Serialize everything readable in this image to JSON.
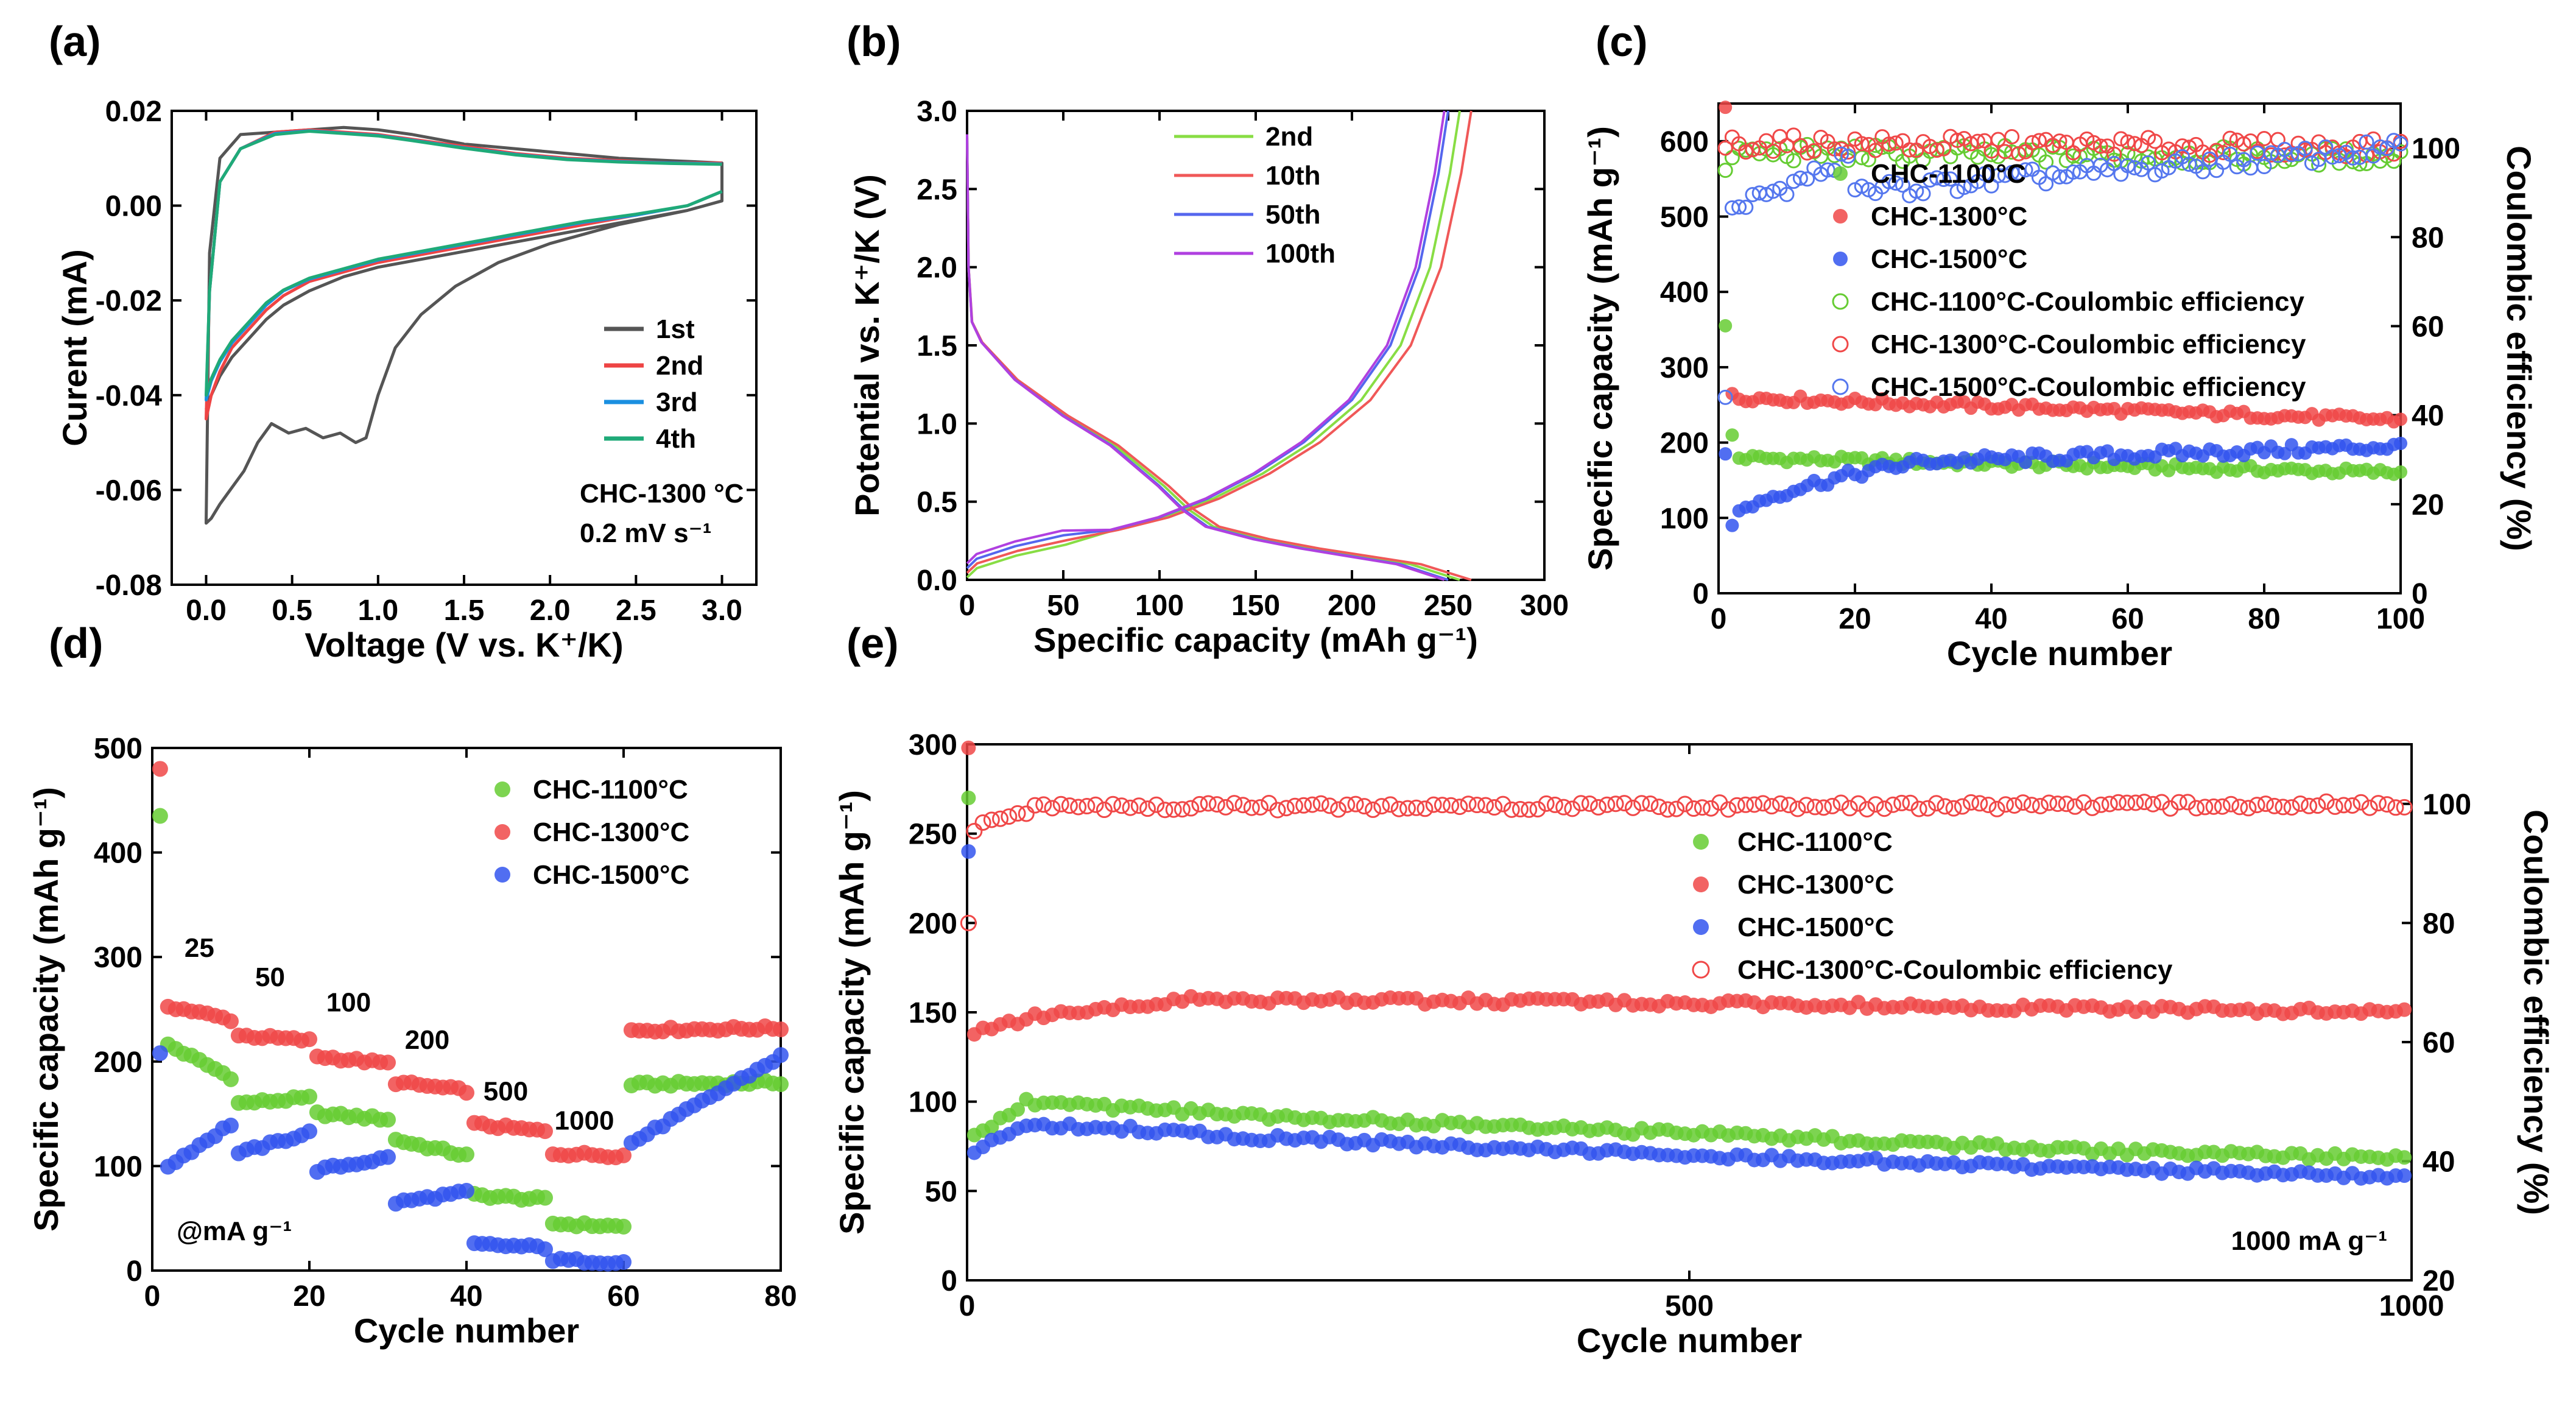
{
  "figure": {
    "panel_labels": [
      "(a)",
      "(b)",
      "(c)",
      "(d)",
      "(e)"
    ]
  },
  "chart_data": [
    {
      "id": "a",
      "type": "line",
      "title": "",
      "xlabel": "Voltage (V vs. K⁺/K)",
      "ylabel": "Curent (mA)",
      "xlim": [
        -0.2,
        3.2
      ],
      "ylim": [
        -0.08,
        0.02
      ],
      "xticks": [
        0.0,
        0.5,
        1.0,
        1.5,
        2.0,
        2.5,
        3.0
      ],
      "xtick_labels": [
        "0.0",
        "0.5",
        "1.0",
        "1.5",
        "2.0",
        "2.5",
        "3.0"
      ],
      "yticks": [
        -0.08,
        -0.06,
        -0.04,
        -0.02,
        0.0,
        0.02
      ],
      "ytick_labels": [
        "-0.08",
        "-0.06",
        "-0.04",
        "-0.02",
        "0.00",
        "0.02"
      ],
      "annotations": [
        "CHC-1300 °C",
        "0.2 mV s⁻¹"
      ],
      "legend_position": "bottom-right",
      "series": [
        {
          "name": "1st",
          "color": "#555555",
          "x": [
            2.8,
            2.4,
            2.0,
            1.7,
            1.45,
            1.25,
            1.1,
            1.0,
            0.93,
            0.87,
            0.78,
            0.68,
            0.58,
            0.48,
            0.38,
            0.3,
            0.22,
            0.14,
            0.08,
            0.03,
            0.0,
            0.02,
            0.08,
            0.2,
            0.4,
            0.6,
            0.8,
            1.0,
            1.2,
            1.5,
            1.8,
            2.1,
            2.4,
            2.7,
            3.0,
            3.0,
            2.8,
            2.5,
            2.2,
            1.9,
            1.6,
            1.3,
            1.0,
            0.8,
            0.6,
            0.45,
            0.35,
            0.25,
            0.15,
            0.08,
            0.03,
            0.0
          ],
          "y": [
            -0.001,
            -0.004,
            -0.008,
            -0.012,
            -0.017,
            -0.023,
            -0.03,
            -0.04,
            -0.049,
            -0.05,
            -0.048,
            -0.049,
            -0.047,
            -0.048,
            -0.046,
            -0.05,
            -0.056,
            -0.06,
            -0.063,
            -0.066,
            -0.067,
            -0.01,
            0.01,
            0.015,
            0.0155,
            0.016,
            0.0165,
            0.016,
            0.015,
            0.013,
            0.012,
            0.011,
            0.01,
            0.0095,
            0.009,
            0.001,
            -0.001,
            -0.003,
            -0.005,
            -0.007,
            -0.009,
            -0.011,
            -0.013,
            -0.015,
            -0.018,
            -0.021,
            -0.024,
            -0.028,
            -0.032,
            -0.036,
            -0.04,
            -0.043
          ]
        },
        {
          "name": "2nd",
          "color": "#ee4444",
          "x": [
            3.0,
            2.8,
            2.5,
            2.2,
            1.9,
            1.6,
            1.3,
            1.0,
            0.8,
            0.6,
            0.45,
            0.35,
            0.25,
            0.15,
            0.08,
            0.03,
            0.0,
            0.02,
            0.08,
            0.2,
            0.4,
            0.6,
            0.8,
            1.0,
            1.2,
            1.5,
            1.8,
            2.1,
            2.4,
            2.7,
            3.0
          ],
          "y": [
            0.003,
            0.0,
            -0.002,
            -0.004,
            -0.006,
            -0.008,
            -0.01,
            -0.012,
            -0.014,
            -0.016,
            -0.019,
            -0.022,
            -0.026,
            -0.03,
            -0.035,
            -0.04,
            -0.045,
            -0.018,
            0.005,
            0.012,
            0.0155,
            0.016,
            0.0155,
            0.015,
            0.014,
            0.0125,
            0.011,
            0.01,
            0.0095,
            0.009,
            0.009
          ]
        },
        {
          "name": "3rd",
          "color": "#1a8fe0",
          "x": [
            3.0,
            2.8,
            2.5,
            2.2,
            1.9,
            1.6,
            1.3,
            1.0,
            0.8,
            0.6,
            0.45,
            0.35,
            0.25,
            0.15,
            0.08,
            0.03,
            0.0,
            0.02,
            0.08,
            0.2,
            0.4,
            0.6,
            0.8,
            1.0,
            1.2,
            1.5,
            1.8,
            2.1,
            2.4,
            2.7,
            3.0
          ],
          "y": [
            0.003,
            0.0,
            -0.002,
            -0.0035,
            -0.0055,
            -0.0075,
            -0.0095,
            -0.0115,
            -0.0135,
            -0.0155,
            -0.018,
            -0.021,
            -0.025,
            -0.029,
            -0.033,
            -0.037,
            -0.041,
            -0.018,
            0.005,
            0.012,
            0.0152,
            0.0158,
            0.0153,
            0.0148,
            0.0138,
            0.0122,
            0.0108,
            0.0098,
            0.0093,
            0.009,
            0.0088
          ]
        },
        {
          "name": "4th",
          "color": "#1faa78",
          "x": [
            3.0,
            2.8,
            2.5,
            2.2,
            1.9,
            1.6,
            1.3,
            1.0,
            0.8,
            0.6,
            0.45,
            0.35,
            0.25,
            0.15,
            0.08,
            0.03,
            0.0,
            0.02,
            0.08,
            0.2,
            0.4,
            0.6,
            0.8,
            1.0,
            1.2,
            1.5,
            1.8,
            2.1,
            2.4,
            2.7,
            3.0
          ],
          "y": [
            0.003,
            0.0,
            -0.0018,
            -0.0033,
            -0.0053,
            -0.0073,
            -0.0093,
            -0.0113,
            -0.0133,
            -0.0153,
            -0.0178,
            -0.0205,
            -0.0245,
            -0.0285,
            -0.0325,
            -0.0365,
            -0.04,
            -0.018,
            0.005,
            0.012,
            0.015,
            0.0157,
            0.0152,
            0.0147,
            0.0137,
            0.0121,
            0.0107,
            0.0097,
            0.0092,
            0.0089,
            0.0087
          ]
        }
      ]
    },
    {
      "id": "b",
      "type": "line",
      "title": "",
      "xlabel": "Specific capacity (mAh g⁻¹)",
      "ylabel": "Potential vs. K⁺/K (V)",
      "xlim": [
        0,
        300
      ],
      "ylim": [
        0.0,
        3.0
      ],
      "xticks": [
        0,
        50,
        100,
        150,
        200,
        250,
        300
      ],
      "xtick_labels": [
        "0",
        "50",
        "100",
        "150",
        "200",
        "250",
        "300"
      ],
      "yticks": [
        0.0,
        0.5,
        1.0,
        1.5,
        2.0,
        2.5,
        3.0
      ],
      "ytick_labels": [
        "0.0",
        "0.5",
        "1.0",
        "1.5",
        "2.0",
        "2.5",
        "3.0"
      ],
      "legend_position": "top-right",
      "series": [
        {
          "name": "2nd",
          "color": "#88dd44",
          "capacity": 256
        },
        {
          "name": "10th",
          "color": "#f05858",
          "capacity": 262
        },
        {
          "name": "50th",
          "color": "#5566ee",
          "capacity": 250
        },
        {
          "name": "100th",
          "color": "#b040e0",
          "capacity": 248
        }
      ]
    },
    {
      "id": "c",
      "type": "scatter",
      "title": "",
      "xlabel": "Cycle number",
      "ylabel": "Specific capacity (mAh g⁻¹)",
      "y2label": "Coulombic efficiency (%)",
      "xlim": [
        0,
        100
      ],
      "ylim": [
        0,
        650
      ],
      "y2lim": [
        0,
        110
      ],
      "xticks": [
        0,
        20,
        40,
        60,
        80,
        100
      ],
      "xtick_labels": [
        "0",
        "20",
        "40",
        "60",
        "80",
        "100"
      ],
      "yticks": [
        0,
        100,
        200,
        300,
        400,
        500,
        600
      ],
      "ytick_labels": [
        "0",
        "100",
        "200",
        "300",
        "400",
        "500",
        "600"
      ],
      "y2ticks": [
        0,
        20,
        40,
        60,
        80,
        100
      ],
      "y2tick_labels": [
        "0",
        "20",
        "40",
        "60",
        "80",
        "100"
      ],
      "legend_position": "center",
      "series": [
        {
          "name": "CHC-1100°C",
          "color": "#66cc33",
          "axis": "left",
          "filled": true,
          "first": 355,
          "second": 210,
          "plateau_start": 180,
          "plateau_end": 160
        },
        {
          "name": "CHC-1300°C",
          "color": "#f04848",
          "axis": "left",
          "filled": true,
          "first": 645,
          "second": 265,
          "plateau_start": 260,
          "plateau_end": 230
        },
        {
          "name": "CHC-1500°C",
          "color": "#3355ee",
          "axis": "left",
          "filled": true,
          "first": 185,
          "second": 90,
          "plateau_start": 90,
          "plateau_end": 195
        },
        {
          "name": "CHC-1100°C-Coulombic efficiency",
          "color": "#66cc33",
          "axis": "right",
          "filled": false,
          "first": 95,
          "plateau_start": 99,
          "plateau_end": 98
        },
        {
          "name": "CHC-1300°C-Coulombic efficiency",
          "color": "#f04848",
          "axis": "right",
          "filled": false,
          "first": 100,
          "plateau_start": 101,
          "plateau_end": 100
        },
        {
          "name": "CHC-1500°C-Coulombic efficiency",
          "color": "#5577ee",
          "axis": "right",
          "filled": false,
          "first": 44,
          "plateau_start": 88,
          "plateau_end": 100
        }
      ]
    },
    {
      "id": "d",
      "type": "scatter",
      "title": "",
      "xlabel": "Cycle number",
      "ylabel": "Specific capacity (mAh g⁻¹)",
      "xlim": [
        0,
        80
      ],
      "ylim": [
        0,
        500
      ],
      "xticks": [
        0,
        20,
        40,
        60,
        80
      ],
      "xtick_labels": [
        "0",
        "20",
        "40",
        "60",
        "80"
      ],
      "yticks": [
        0,
        100,
        200,
        300,
        400,
        500
      ],
      "ytick_labels": [
        "0",
        "100",
        "200",
        "300",
        "400",
        "500"
      ],
      "legend_position": "top-right",
      "rate_labels": [
        {
          "text": "25",
          "x": 6,
          "y": 300
        },
        {
          "text": "50",
          "x": 15,
          "y": 272
        },
        {
          "text": "100",
          "x": 25,
          "y": 248
        },
        {
          "text": "200",
          "x": 35,
          "y": 212
        },
        {
          "text": "500",
          "x": 45,
          "y": 163
        },
        {
          "text": "1000",
          "x": 55,
          "y": 135
        }
      ],
      "note": "@mA g⁻¹",
      "series": [
        {
          "name": "CHC-1100°C",
          "color": "#66cc33",
          "first": 435,
          "steps": [
            [
              220,
              185
            ],
            [
              160,
              165
            ],
            [
              150,
              145
            ],
            [
              125,
              110
            ],
            [
              72,
              68
            ],
            [
              45,
              42
            ],
            [
              178,
              180
            ]
          ]
        },
        {
          "name": "CHC-1300°C",
          "color": "#f04848",
          "first": 480,
          "steps": [
            [
              255,
              240
            ],
            [
              225,
              220
            ],
            [
              205,
              198
            ],
            [
              180,
              172
            ],
            [
              140,
              133
            ],
            [
              112,
              110
            ],
            [
              230,
              232
            ]
          ]
        },
        {
          "name": "CHC-1500°C",
          "color": "#3355ee",
          "first": 208,
          "steps": [
            [
              95,
              140
            ],
            [
              112,
              132
            ],
            [
              96,
              108
            ],
            [
              65,
              75
            ],
            [
              25,
              22
            ],
            [
              10,
              8
            ],
            [
              122,
              205
            ]
          ]
        }
      ]
    },
    {
      "id": "e",
      "type": "scatter",
      "title": "",
      "xlabel": "Cycle number",
      "ylabel": "Specific capacity (mAh g⁻¹)",
      "y2label": "Coulombic efficiency (%)",
      "xlim": [
        0,
        1000
      ],
      "ylim": [
        0,
        300
      ],
      "y2lim": [
        20,
        110
      ],
      "xticks": [
        0,
        500,
        1000
      ],
      "xtick_labels": [
        "0",
        "500",
        "1000"
      ],
      "yticks": [
        0,
        50,
        100,
        150,
        200,
        250,
        300
      ],
      "ytick_labels": [
        "0",
        "50",
        "100",
        "150",
        "200",
        "250",
        "300"
      ],
      "y2ticks": [
        20,
        40,
        60,
        80,
        100
      ],
      "y2tick_labels": [
        "20",
        "40",
        "60",
        "80",
        "100"
      ],
      "legend_position": "center",
      "note": "1000 mA g⁻¹",
      "series": [
        {
          "name": "CHC-1100°C",
          "color": "#66cc33",
          "axis": "left",
          "filled": true,
          "first": 270,
          "points": [
            [
              5,
              80
            ],
            [
              40,
              100
            ],
            [
              200,
              92
            ],
            [
              500,
              82
            ],
            [
              800,
              72
            ],
            [
              1000,
              68
            ]
          ]
        },
        {
          "name": "CHC-1300°C",
          "color": "#f04848",
          "axis": "left",
          "filled": true,
          "first": 298,
          "points": [
            [
              5,
              138
            ],
            [
              50,
              148
            ],
            [
              150,
              157
            ],
            [
              400,
              156
            ],
            [
              700,
              153
            ],
            [
              1000,
              150
            ]
          ]
        },
        {
          "name": "CHC-1500°C",
          "color": "#3355ee",
          "axis": "left",
          "filled": true,
          "first": 240,
          "points": [
            [
              5,
              72
            ],
            [
              40,
              88
            ],
            [
              200,
              80
            ],
            [
              500,
              70
            ],
            [
              800,
              62
            ],
            [
              1000,
              58
            ]
          ]
        },
        {
          "name": "CHC-1300°C-Coulombic efficiency",
          "color": "#f04848",
          "axis": "right",
          "filled": false,
          "first": 80,
          "points": [
            [
              5,
              96
            ],
            [
              50,
              99.5
            ],
            [
              1000,
              99.8
            ]
          ]
        }
      ]
    }
  ]
}
